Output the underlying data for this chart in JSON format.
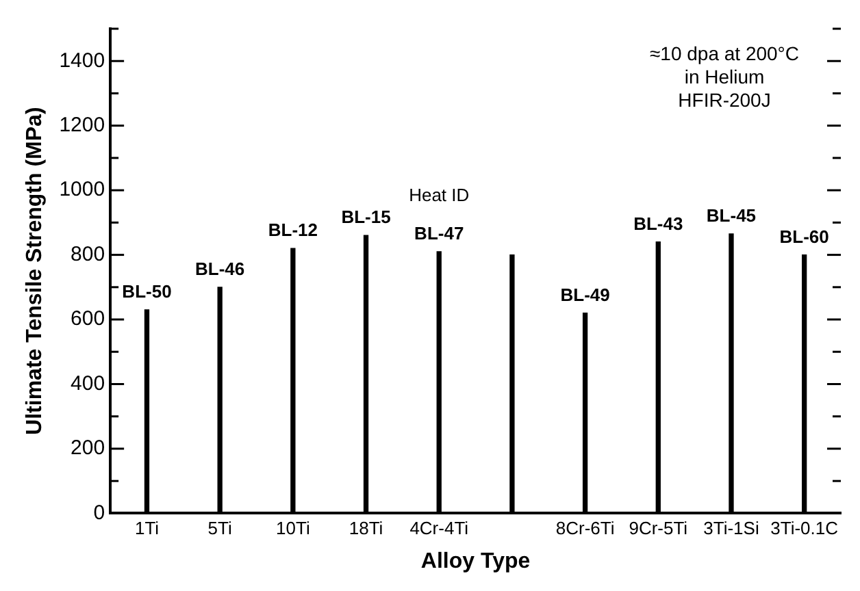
{
  "chart_data": {
    "type": "bar",
    "xlabel": "Alloy Type",
    "ylabel": "Ultimate Tensile Strength (MPa)",
    "categories": [
      "1Ti",
      "5Ti",
      "10Ti",
      "18Ti",
      "4Cr-4Ti",
      null,
      "8Cr-6Ti",
      "9Cr-5Ti",
      "3Ti-1Si",
      "3Ti-0.1C"
    ],
    "series": [
      {
        "color": "#000000",
        "values": [
          630,
          700,
          820,
          860,
          810,
          800,
          620,
          840,
          865,
          800
        ]
      }
    ],
    "ylim": [
      0,
      1500
    ],
    "yticks": [
      0,
      {
        "value": 100,
        "label": null
      },
      200,
      {
        "value": 300,
        "label": null
      },
      400,
      {
        "value": 500,
        "label": null
      },
      600,
      {
        "value": 700,
        "label": null
      },
      800,
      {
        "value": 900,
        "label": null
      },
      1000,
      {
        "value": 1100,
        "label": null
      },
      1200,
      {
        "value": 1300,
        "label": null
      },
      1400,
      {
        "value": 1500,
        "label": null
      }
    ],
    "grid": false,
    "legend": false,
    "annotations": [
      "≈10 dpa at 200°C",
      "in Helium",
      "HFIR-200J",
      {
        "text": "BL-50",
        "x": "1Ti",
        "y": 630
      },
      {
        "text": "BL-46",
        "x": "5Ti",
        "y": 700
      },
      {
        "text": "BL-12",
        "x": "10Ti",
        "y": 820
      },
      {
        "text": "BL-15",
        "x": "18Ti",
        "y": 860
      },
      {
        "text": "BL-47",
        "x": "4Cr-4Ti",
        "y": 810
      },
      "Heat ID",
      {
        "text": "BL-49",
        "x": "8Cr-6Ti",
        "y": 620
      },
      {
        "text": "BL-43",
        "x": "9Cr-5Ti",
        "y": 840
      },
      {
        "text": "BL-45",
        "x": "3Ti-1Si",
        "y": 865
      },
      {
        "text": "BL-60",
        "x": "3Ti-0.1C",
        "y": 800
      }
    ]
  }
}
